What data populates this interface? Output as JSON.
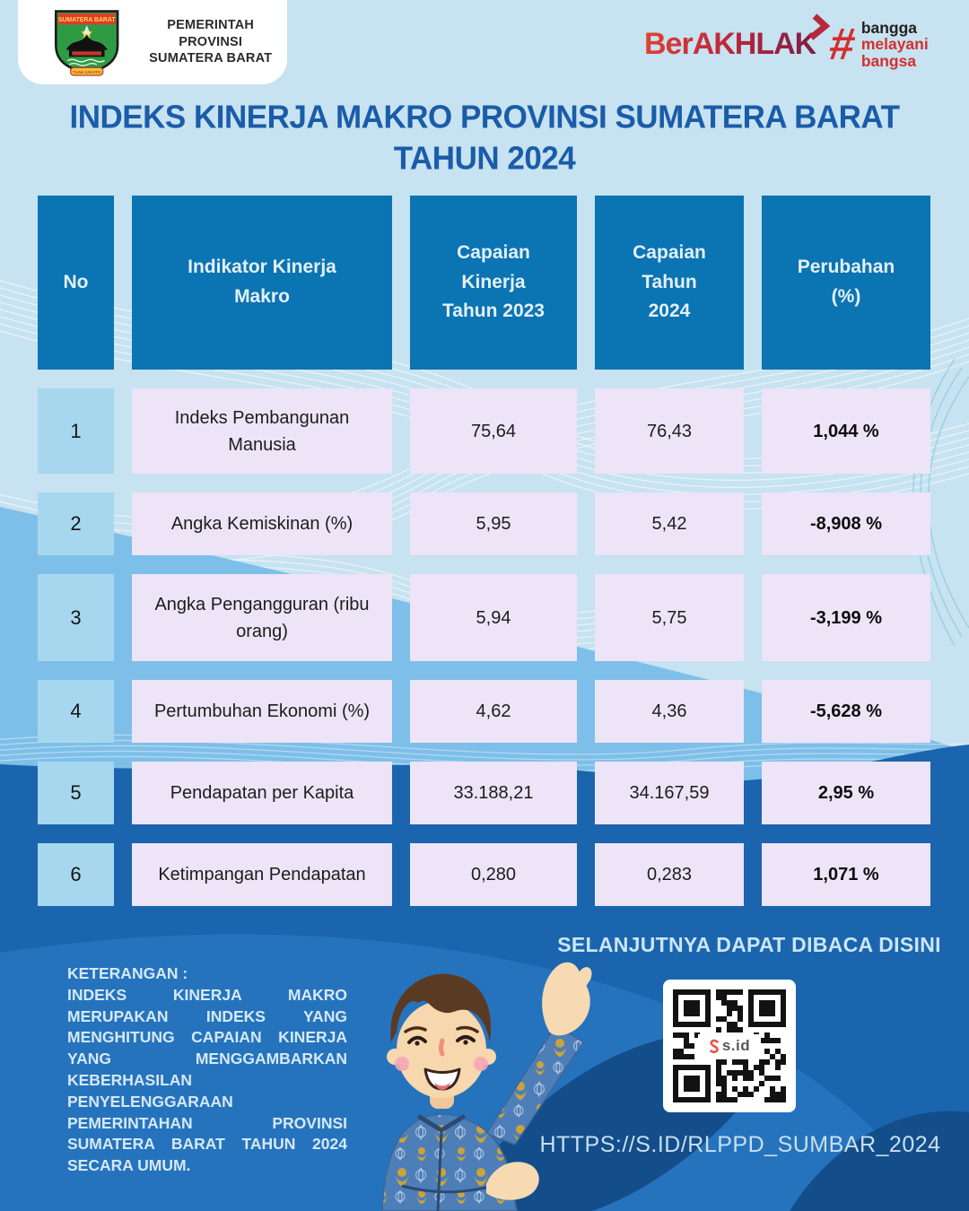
{
  "header": {
    "org_name": "PEMERINTAH PROVINSI\nSUMATERA BARAT",
    "shield_banner": "SUMATERA BARAT",
    "shield_ribbon": "TUAH SAKATO",
    "berakhlak": "BerAKHLAK",
    "bmb_hash": "#",
    "bmb_word1": "bangga",
    "bmb_word2": "melayani",
    "bmb_word3": "bangsa"
  },
  "title": "INDEKS KINERJA MAKRO PROVINSI SUMATERA BARAT\nTAHUN 2024",
  "table": {
    "columns": [
      "No",
      "Indikator Kinerja\nMakro",
      "Capaian\nKinerja\nTahun 2023",
      "Capaian\nTahun\n2024",
      "Perubahan\n(%)"
    ],
    "rows": [
      {
        "no": "1",
        "indicator": "Indeks Pembangunan Manusia",
        "y2023": "75,64",
        "y2024": "76,43",
        "change": "1,044 %"
      },
      {
        "no": "2",
        "indicator": "Angka Kemiskinan (%)",
        "y2023": "5,95",
        "y2024": "5,42",
        "change": "-8,908 %"
      },
      {
        "no": "3",
        "indicator": "Angka Pengangguran (ribu orang)",
        "y2023": "5,94",
        "y2024": "5,75",
        "change": "-3,199 %"
      },
      {
        "no": "4",
        "indicator": "Pertumbuhan Ekonomi (%)",
        "y2023": "4,62",
        "y2024": "4,36",
        "change": "-5,628 %"
      },
      {
        "no": "5",
        "indicator": "Pendapatan per Kapita",
        "y2023": "33.188,21",
        "y2024": "34.167,59",
        "change": "2,95 %"
      },
      {
        "no": "6",
        "indicator": "Ketimpangan Pendapatan",
        "y2023": "0,280",
        "y2024": "0,283",
        "change": "1,071 %"
      }
    ]
  },
  "footer": {
    "keterangan_label": "KETERANGAN :",
    "keterangan_text": "INDEKS KINERJA MAKRO MERUPAKAN INDEKS YANG MENGHITUNG CAPAIAN KINERJA YANG MENGGAMBARKAN KEBERHASILAN PENYELENGGARAAN PEMERINTAHAN PROVINSI SUMATERA BARAT TAHUN 2024 SECARA UMUM.",
    "next_label": "SELANJUTNYA DAPAT DIBACA DISINI",
    "qr_label": "s.id",
    "url": "HTTPS://S.ID/RLPPD_SUMBAR_2024"
  },
  "colors": {
    "header_cell": "#0B74B2",
    "no_cell": "#A6D7EF",
    "data_cell": "#EDE4F7",
    "title_blue": "#1A5CA8",
    "bg_light": "#C7E2F0",
    "bg_medium": "#7DBFE8",
    "bg_dark": "#1B65AE",
    "brand_red": "#D3302F"
  }
}
